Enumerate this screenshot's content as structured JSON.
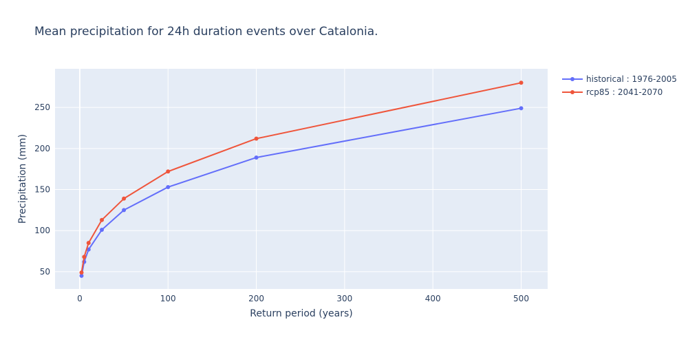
{
  "chart_data": {
    "type": "line",
    "title": "Mean precipitation for 24h duration events over Catalonia.",
    "xlabel": "Return period (years)",
    "ylabel": "Precipitation (mm)",
    "xlim": [
      -28,
      530
    ],
    "ylim": [
      29,
      297
    ],
    "x_ticks": [
      0,
      100,
      200,
      300,
      400,
      500
    ],
    "y_ticks": [
      50,
      100,
      150,
      200,
      250
    ],
    "grid": true,
    "legend_position": "top-right",
    "plot_background": "#e5ecf6",
    "x": [
      2,
      5,
      10,
      25,
      50,
      100,
      200,
      500
    ],
    "series": [
      {
        "name": "historical : 1976-2005",
        "color": "#636efa",
        "values": [
          45,
          62,
          77,
          101,
          125,
          153,
          189,
          249
        ]
      },
      {
        "name": "rcp85 : 2041-2070",
        "color": "#ef553b",
        "values": [
          49,
          68,
          85,
          113,
          139,
          172,
          212,
          280
        ]
      }
    ]
  }
}
